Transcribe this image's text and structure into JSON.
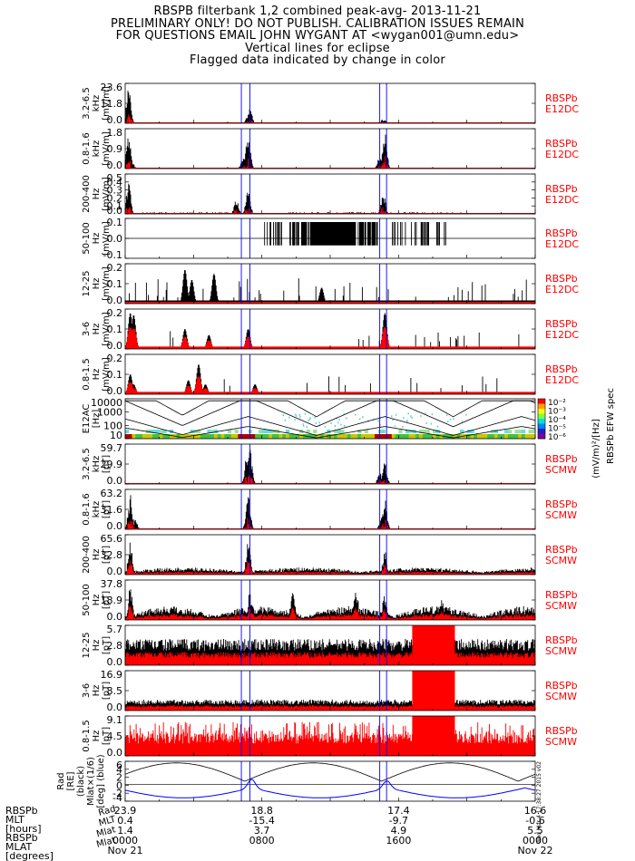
{
  "header": {
    "lines": [
      "RBSPB filterbank 1,2 combined peak-avg- 2013-11-21",
      "PRELIMINARY ONLY! DO NOT PUBLISH. CALIBRATION ISSUES REMAIN",
      "FOR QUESTIONS EMAIL JOHN WYGANT AT <wygan001@umn.edu>",
      "Vertical lines for eclipse",
      "Flagged data indicated by change in color"
    ]
  },
  "timestamp_stamp": "Wed Mar 4 17:38:27 2015 v02",
  "colors": {
    "peak": "#000000",
    "avg": "#ff0000",
    "eclipse": "#0000ff",
    "ephem": "#0000ff",
    "label": "#ff0000"
  },
  "chart_data": {
    "type": "stacked_timeseries",
    "x_range": [
      "2013-11-21 00:00",
      "2013-11-22 00:00"
    ],
    "eclipse_hours": [
      6.8,
      7.3,
      14.9,
      15.3
    ],
    "panels": [
      {
        "id": "e1",
        "ylabel": [
          "3.2-6.5",
          "kHz",
          "[mV/m]"
        ],
        "ticks": [
          "23.6",
          "11.8",
          "0.0"
        ],
        "ylim": [
          0,
          23.6
        ],
        "source": [
          "RBSPb",
          "E12DC"
        ],
        "style": "spiky",
        "peaks": [
          [
            0.2,
            23.6
          ],
          [
            0.25,
            5
          ],
          [
            7.2,
            5
          ],
          [
            7.3,
            10
          ],
          [
            15.1,
            2.5
          ],
          [
            15.2,
            1.5
          ]
        ]
      },
      {
        "id": "e2",
        "ylabel": [
          "0.8-1.6",
          "kHz",
          "[mV/m]"
        ],
        "ticks": [
          "1.8",
          "0.9",
          "0.0"
        ],
        "ylim": [
          0,
          1.8
        ],
        "source": [
          "RBSPb",
          "E12DC"
        ],
        "style": "bursts",
        "peaks": [
          [
            0.2,
            1.6
          ],
          [
            0.4,
            0.3
          ],
          [
            6.9,
            0.5
          ],
          [
            7.2,
            1.75
          ],
          [
            15.2,
            1.75
          ],
          [
            14.9,
            0.6
          ]
        ]
      },
      {
        "id": "e3",
        "ylabel": [
          "200-400",
          "Hz",
          "[mV/m]"
        ],
        "ticks": [
          "0.5",
          "0.4",
          "0.3",
          "0.2",
          "0.1",
          "0.0"
        ],
        "ylim": [
          0,
          0.5
        ],
        "source": [
          "RBSPb",
          "E12DC"
        ],
        "style": "blocky",
        "peaks": [
          [
            0.2,
            0.4
          ],
          [
            6.5,
            0.2
          ],
          [
            7.2,
            0.35
          ],
          [
            15.1,
            0.3
          ]
        ]
      },
      {
        "id": "e4",
        "ylabel": [
          "50-100",
          "Hz",
          "[mV/m]"
        ],
        "ticks": [
          "0.1",
          "0.0",
          "-0.1"
        ],
        "ylim": [
          -0.1,
          0.1
        ],
        "source": [
          "RBSPb",
          "E12DC"
        ],
        "style": "bars"
      },
      {
        "id": "e5",
        "ylabel": [
          "12-25",
          "Hz",
          "[mV/m]"
        ],
        "ticks": [
          "0.2",
          "0.1",
          "0.0"
        ],
        "ylim": [
          0,
          0.2
        ],
        "source": [
          "RBSPb",
          "E12DC"
        ],
        "style": "dense_base",
        "peaks": [
          [
            3.5,
            0.17
          ],
          [
            3.9,
            0.12
          ],
          [
            5.2,
            0.15
          ],
          [
            11.5,
            0.08
          ]
        ]
      },
      {
        "id": "e6",
        "ylabel": [
          "3-6",
          "Hz",
          "[mV/m]"
        ],
        "ticks": [
          "0.2",
          "0.1",
          "0.0"
        ],
        "ylim": [
          0,
          0.2
        ],
        "source": [
          "RBSPb",
          "E12DC"
        ],
        "style": "red_base",
        "peaks": [
          [
            0.3,
            0.18
          ],
          [
            0.5,
            0.17
          ],
          [
            3.5,
            0.1
          ],
          [
            4.9,
            0.07
          ],
          [
            7.2,
            0.1
          ],
          [
            15.2,
            0.18
          ]
        ]
      },
      {
        "id": "e7",
        "ylabel": [
          "0.8-1.5",
          "Hz",
          "[mV/m]"
        ],
        "ticks": [
          "0.2",
          "0.1",
          "0.0"
        ],
        "ylim": [
          0,
          0.2
        ],
        "source": [
          "RBSPb",
          "E12DC"
        ],
        "style": "red_base2",
        "peaks": [
          [
            0.3,
            0.1
          ],
          [
            0.5,
            0.05
          ],
          [
            3.7,
            0.07
          ],
          [
            4.3,
            0.15
          ],
          [
            4.7,
            0.05
          ],
          [
            7.6,
            0.05
          ]
        ]
      },
      {
        "id": "spec",
        "ylabel": [
          "E12AC",
          "[Hz]"
        ],
        "ticks": [
          "10000",
          "1000",
          "100",
          "10"
        ],
        "ylim": [
          10,
          10000
        ],
        "ylog": true,
        "source": [],
        "style": "spectrogram",
        "colorbar": {
          "labels": [
            "10⁻²",
            "10⁻³",
            "10⁻⁴",
            "10⁻⁵",
            "10⁻⁶"
          ],
          "title": "(mV/m)²/[Hz]",
          "subtitle": "RBSPb EFW spec"
        }
      },
      {
        "id": "b1",
        "ylabel": [
          "3.2-6.5",
          "kHz",
          "[pT]"
        ],
        "ticks": [
          "59.7",
          "29.9",
          "0.0"
        ],
        "ylim": [
          0,
          59.7
        ],
        "source": [
          "RBSPb",
          "SCMW"
        ],
        "style": "bursts",
        "peaks": [
          [
            7.1,
            40
          ],
          [
            7.3,
            55
          ],
          [
            15.2,
            35
          ],
          [
            14.9,
            20
          ]
        ]
      },
      {
        "id": "b2",
        "ylabel": [
          "0.8-1.6",
          "kHz",
          "[pT]"
        ],
        "ticks": [
          "63.2",
          "31.6",
          "0.0"
        ],
        "ylim": [
          0,
          63.2
        ],
        "source": [
          "RBSPb",
          "SCMW"
        ],
        "style": "bursts",
        "peaks": [
          [
            0.3,
            55
          ],
          [
            7.2,
            60
          ],
          [
            15.2,
            50
          ],
          [
            15.0,
            20
          ],
          [
            0.6,
            15
          ]
        ]
      },
      {
        "id": "b3",
        "ylabel": [
          "200-400",
          "Hz",
          "[pT]"
        ],
        "ticks": [
          "65.6",
          "32.8",
          "0.0"
        ],
        "ylim": [
          0,
          65.6
        ],
        "source": [
          "RBSPb",
          "SCMW"
        ],
        "style": "noisy",
        "peaks": [
          [
            0.3,
            55
          ],
          [
            7.2,
            60
          ],
          [
            15.2,
            40
          ]
        ]
      },
      {
        "id": "b4",
        "ylabel": [
          "50-100",
          "Hz",
          "[pT]"
        ],
        "ticks": [
          "37.8",
          "18.9",
          "0.0"
        ],
        "ylim": [
          0,
          37.8
        ],
        "source": [
          "RBSPb",
          "SCMW"
        ],
        "style": "noisy_envelope",
        "peaks": [
          [
            0.3,
            35
          ],
          [
            7.3,
            28
          ],
          [
            9.8,
            30
          ],
          [
            13.5,
            35
          ],
          [
            15.2,
            28
          ],
          [
            18.5,
            25
          ]
        ]
      },
      {
        "id": "b5",
        "ylabel": [
          "12-25",
          "Hz",
          "[pT]"
        ],
        "ticks": [
          "5.7",
          "2.8",
          "0.0"
        ],
        "ylim": [
          0,
          5.7
        ],
        "source": [
          "RBSPb",
          "SCMW"
        ],
        "style": "dense_band",
        "red_block_hours": [
          16.8,
          19.3
        ]
      },
      {
        "id": "b6",
        "ylabel": [
          "3-6",
          "Hz",
          "[pT]"
        ],
        "ticks": [
          "16.9",
          "8.5",
          "0.0"
        ],
        "ylim": [
          0,
          16.9
        ],
        "source": [
          "RBSPb",
          "SCMW"
        ],
        "style": "dense_band_low",
        "red_block_hours": [
          16.8,
          19.3
        ]
      },
      {
        "id": "b7",
        "ylabel": [
          "0.8-1.5",
          "Hz",
          "[pT]"
        ],
        "ticks": [
          "9.1",
          "4.5",
          "0.0"
        ],
        "ylim": [
          0,
          9.1
        ],
        "source": [
          "RBSPb",
          "SCMW"
        ],
        "style": "red_bars",
        "red_block_hours": [
          16.8,
          19.3
        ]
      },
      {
        "id": "ephem",
        "ylabel": [
          "Rad",
          "[RE]",
          "(black)",
          "Mlat×(1/6)",
          "[deg] (blue)"
        ],
        "ticks": [
          "6",
          "4",
          "2",
          "0",
          "-2",
          "-4"
        ],
        "ylim": [
          -5,
          7
        ],
        "source": [],
        "style": "ephemeris"
      }
    ],
    "axis": {
      "row_labels": [
        "RBSPb",
        "MLT",
        "[hours]",
        "RBSPb",
        "MLAT",
        "[degrees]"
      ],
      "ticks": [
        {
          "hour": 0,
          "vals": [
            "23.9",
            "0.4",
            "1.4",
            "0000"
          ],
          "date": "Nov 21"
        },
        {
          "hour": 8,
          "vals": [
            "18.8",
            "-15.4",
            "3.7",
            "0800"
          ],
          "date": ""
        },
        {
          "hour": 16,
          "vals": [
            "17.4",
            "-9.7",
            "4.9",
            "1600"
          ],
          "date": ""
        },
        {
          "hour": 24,
          "vals": [
            "16.6",
            "-0.6",
            "5.5",
            "0000"
          ],
          "date": "Nov 22"
        }
      ],
      "tick_side_labels": [
        "Rad",
        "MLT",
        "Mlat",
        "Mlat"
      ]
    }
  }
}
